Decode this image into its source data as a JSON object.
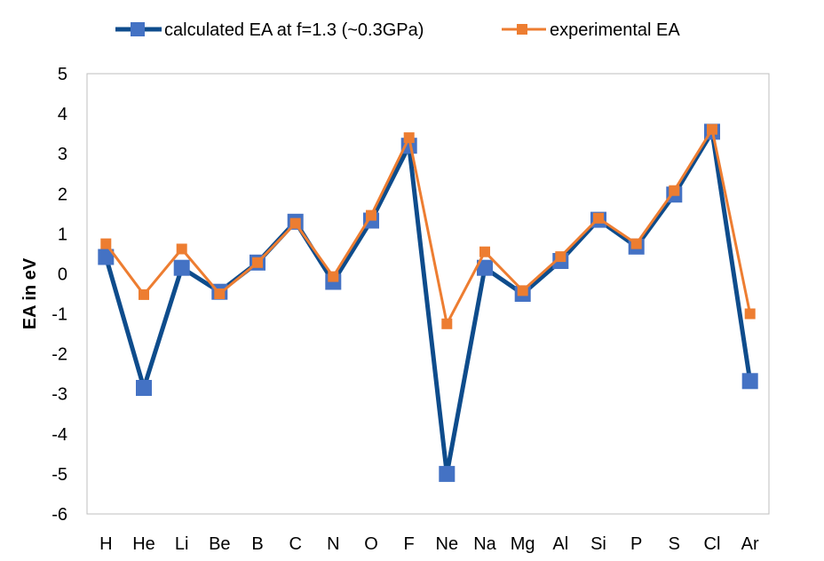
{
  "chart_data": {
    "type": "line",
    "title": "",
    "xlabel": "",
    "ylabel": "EA  in eV",
    "categories": [
      "H",
      "He",
      "Li",
      "Be",
      "B",
      "C",
      "N",
      "O",
      "F",
      "Ne",
      "Na",
      "Mg",
      "Al",
      "Si",
      "P",
      "S",
      "Cl",
      "Ar"
    ],
    "ylim": [
      -6,
      5
    ],
    "yticks": [
      5,
      4,
      3,
      2,
      1,
      0,
      -1,
      -2,
      -3,
      -4,
      -5,
      -6
    ],
    "grid": false,
    "legend_position": "top",
    "series": [
      {
        "name": "calculated EA at f=1.3 (~0.3GPa)",
        "line_color": "#0E4C8C",
        "marker_color": "#4472C4",
        "marker": "square",
        "values": [
          0.42,
          -2.85,
          0.15,
          -0.45,
          0.28,
          1.3,
          -0.2,
          1.33,
          3.2,
          -5.0,
          0.15,
          -0.5,
          0.32,
          1.35,
          0.68,
          1.98,
          3.55,
          -2.68
        ]
      },
      {
        "name": "experimental EA",
        "line_color": "#ED7D31",
        "marker_color": "#ED7D31",
        "marker": "square",
        "values": [
          0.75,
          -0.52,
          0.62,
          -0.5,
          0.28,
          1.26,
          -0.07,
          1.46,
          3.4,
          -1.25,
          0.55,
          -0.42,
          0.43,
          1.39,
          0.75,
          2.08,
          3.61,
          -1.0
        ]
      }
    ]
  }
}
